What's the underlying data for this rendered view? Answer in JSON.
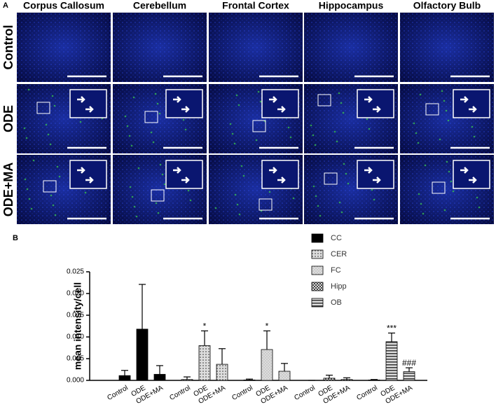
{
  "panel_labels": [
    "A",
    "B"
  ],
  "micrographs": {
    "columns": [
      "Corpus Callosum",
      "Cerebellum",
      "Frontal Cortex",
      "Hippocampus",
      "Olfactory Bulb"
    ],
    "rows": [
      "Control",
      "ODE",
      "ODE+MA"
    ]
  },
  "chart_data": {
    "type": "grouped_bar",
    "y_label": "mean intensity/cell",
    "categories": [
      "Control",
      "ODE",
      "ODE+MA"
    ],
    "ylim": [
      0,
      0.025
    ],
    "yticks": [
      {
        "value": 0,
        "label": "0.000"
      },
      {
        "value": 0.005,
        "label": "0.005"
      },
      {
        "value": 0.01,
        "label": "0.010"
      },
      {
        "value": 0.015,
        "label": "0.015"
      },
      {
        "value": 0.02,
        "label": "0.020"
      },
      {
        "value": 0.025,
        "label": "0.025"
      }
    ],
    "series": [
      {
        "name": "CC",
        "color": "#000000",
        "pattern": "solid",
        "values": [
          0.0011,
          0.0118,
          0.0014
        ],
        "errors": [
          0.0012,
          0.0103,
          0.002
        ]
      },
      {
        "name": "CER",
        "color": "#555555",
        "pattern": "dots",
        "values": [
          0.0002,
          0.008,
          0.0037
        ],
        "errors": [
          0.0006,
          0.0034,
          0.0036
        ],
        "annotations": [
          null,
          "*",
          null
        ]
      },
      {
        "name": "FC",
        "color": "#777777",
        "pattern": "fine",
        "values": [
          0.0001,
          0.0071,
          0.0021
        ],
        "errors": [
          0.0002,
          0.0043,
          0.0018
        ],
        "annotations": [
          null,
          "*",
          null
        ]
      },
      {
        "name": "Hipp",
        "color": "#444444",
        "pattern": "checker",
        "values": [
          0,
          0.0005,
          0.0002
        ],
        "errors": [
          0,
          0.0007,
          0.0004
        ]
      },
      {
        "name": "OB",
        "color": "#333333",
        "pattern": "hstripes",
        "values": [
          0.0001,
          0.0089,
          0.002
        ],
        "errors": [
          0.0001,
          0.002,
          0.0009
        ],
        "annotations": [
          null,
          "***",
          "###"
        ]
      }
    ]
  }
}
